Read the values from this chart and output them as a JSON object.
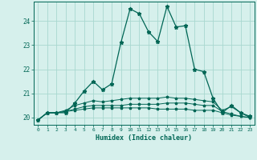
{
  "title": "",
  "xlabel": "Humidex (Indice chaleur)",
  "xlim": [
    -0.5,
    23.5
  ],
  "ylim": [
    19.7,
    24.8
  ],
  "background_color": "#d6f0ec",
  "grid_color": "#a8d8d0",
  "line_color": "#006655",
  "xticks": [
    0,
    1,
    2,
    3,
    4,
    5,
    6,
    7,
    8,
    9,
    10,
    11,
    12,
    13,
    14,
    15,
    16,
    17,
    18,
    19,
    20,
    21,
    22,
    23
  ],
  "yticks": [
    20,
    21,
    22,
    23,
    24
  ],
  "curve1": [
    19.9,
    20.2,
    20.2,
    20.2,
    20.6,
    21.1,
    21.5,
    21.15,
    21.4,
    23.1,
    24.5,
    24.3,
    23.55,
    23.15,
    24.6,
    23.75,
    23.8,
    22.0,
    21.9,
    20.8,
    20.2,
    20.5,
    20.2,
    20.05
  ],
  "curve2": [
    19.9,
    20.2,
    20.2,
    20.25,
    20.3,
    20.35,
    20.4,
    20.4,
    20.4,
    20.4,
    20.4,
    20.4,
    20.4,
    20.35,
    20.35,
    20.35,
    20.35,
    20.3,
    20.3,
    20.3,
    20.2,
    20.1,
    20.05,
    20.0
  ],
  "curve3": [
    19.9,
    20.2,
    20.2,
    20.25,
    20.35,
    20.45,
    20.5,
    20.5,
    20.5,
    20.5,
    20.55,
    20.55,
    20.55,
    20.55,
    20.6,
    20.6,
    20.6,
    20.55,
    20.5,
    20.5,
    20.25,
    20.15,
    20.05,
    20.0
  ],
  "curve4": [
    19.9,
    20.2,
    20.2,
    20.3,
    20.5,
    20.6,
    20.7,
    20.65,
    20.7,
    20.75,
    20.8,
    20.8,
    20.8,
    20.8,
    20.85,
    20.8,
    20.8,
    20.75,
    20.7,
    20.65,
    20.3,
    20.45,
    20.2,
    20.0
  ]
}
